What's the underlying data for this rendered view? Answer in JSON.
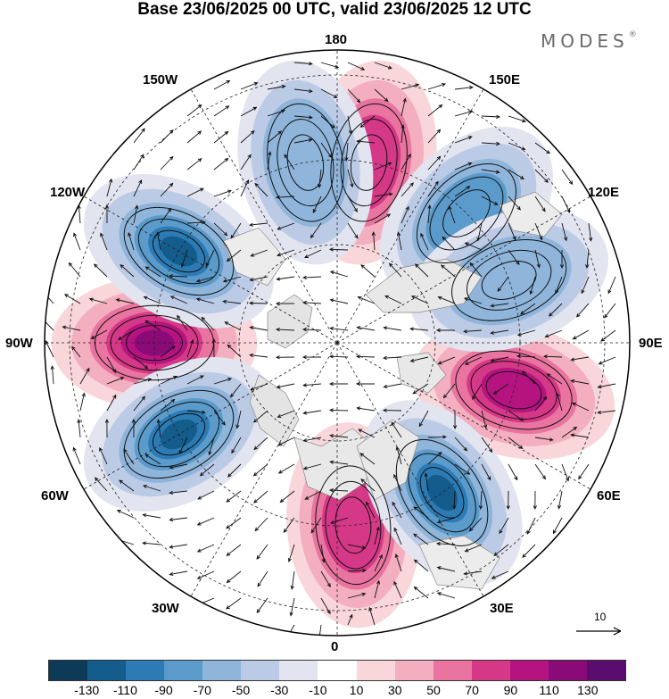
{
  "title": "Base 23/06/2025 00 UTC, valid 23/06/2025 12 UTC",
  "brand": "MODES",
  "brand_mark": "®",
  "longitude_labels": {
    "deg180": "180",
    "w150": "150W",
    "e150": "150E",
    "w120": "120W",
    "e120": "120E",
    "w90": "90W",
    "e90": "90E",
    "w60": "60W",
    "e60": "60E",
    "w30": "30W",
    "e30": "30E",
    "deg0": "0"
  },
  "vector_scale": {
    "label": "10"
  },
  "colorbar": {
    "ticks": [
      "-130",
      "-110",
      "-90",
      "-70",
      "-50",
      "-30",
      "-10",
      "10",
      "30",
      "50",
      "70",
      "90",
      "110",
      "130"
    ],
    "colors": [
      "#0d3b57",
      "#145c8c",
      "#2d7bb5",
      "#5b9bcb",
      "#8fb5db",
      "#bccbe5",
      "#e2e4f0",
      "#ffffff",
      "#f8d6d9",
      "#f3aec0",
      "#e9749f",
      "#d63888",
      "#b51480",
      "#8a0a78",
      "#5b0c6f"
    ]
  },
  "map_data": {
    "projection": "north-polar-stereographic",
    "center_longitude_bottom": "0",
    "anomaly_centers": [
      {
        "sign": "positive",
        "level": 130,
        "longitude": "90W",
        "name": "ridge-90w"
      },
      {
        "sign": "positive",
        "level": 90,
        "longitude": "75E",
        "name": "ridge-75e"
      },
      {
        "sign": "positive",
        "level": 70,
        "longitude": "5E",
        "name": "ridge-5e"
      },
      {
        "sign": "positive",
        "level": 70,
        "longitude": "170E",
        "name": "ridge-170e"
      },
      {
        "sign": "negative",
        "level": -110,
        "longitude": "60W",
        "name": "trough-60w"
      },
      {
        "sign": "negative",
        "level": -110,
        "longitude": "120W",
        "name": "trough-120w"
      },
      {
        "sign": "negative",
        "level": -110,
        "longitude": "35E",
        "name": "trough-35e"
      },
      {
        "sign": "negative",
        "level": -70,
        "longitude": "135E",
        "name": "trough-135e"
      },
      {
        "sign": "negative",
        "level": -50,
        "longitude": "110E",
        "name": "trough-110e"
      },
      {
        "sign": "negative",
        "level": -50,
        "longitude": "170W",
        "name": "trough-170w"
      }
    ]
  }
}
